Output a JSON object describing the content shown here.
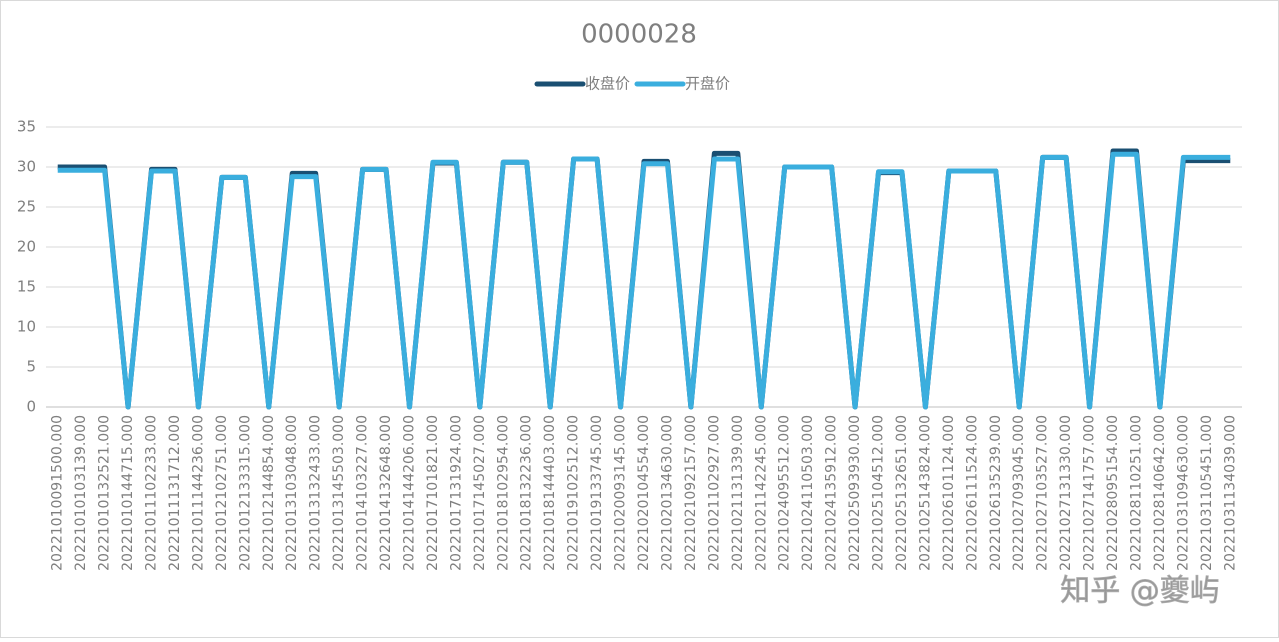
{
  "chart_data": {
    "type": "line",
    "title": "0000028",
    "categories": [
      "20221010091500.000",
      "20221010103139.000",
      "20221010132521.000",
      "20221010144715.000",
      "20221011102233.000",
      "20221011131712.000",
      "20221011144236.000",
      "20221012102751.000",
      "20221012133315.000",
      "20221012144854.000",
      "20221013103048.000",
      "20221013132433.000",
      "20221013145503.000",
      "20221014103227.000",
      "20221014132648.000",
      "20221014144206.000",
      "20221017101821.000",
      "20221017131924.000",
      "20221017145027.000",
      "20221018102954.000",
      "20221018132236.000",
      "20221018144403.000",
      "20221019102512.000",
      "20221019133745.000",
      "20221020093145.000",
      "20221020104554.000",
      "20221020134630.000",
      "20221021092157.000",
      "20221021102927.000",
      "20221021131339.000",
      "20221021142245.000",
      "20221024095512.000",
      "20221024110503.000",
      "20221024135912.000",
      "20221025093930.000",
      "20221025104512.000",
      "20221025132651.000",
      "20221025143824.000",
      "20221026101124.000",
      "20221026111524.000",
      "20221026135239.000",
      "20221027093045.000",
      "20221027103527.000",
      "20221027131330.000",
      "20221027141757.000",
      "20221028095154.000",
      "20221028110251.000",
      "20221028140642.000",
      "20221031094630.000",
      "20221031105451.000",
      "20221031134039.000"
    ],
    "series": [
      {
        "name": "收盘价",
        "color": "#1a4f72",
        "values": [
          30.0,
          30.0,
          30.0,
          0,
          29.7,
          29.7,
          0,
          28.7,
          28.7,
          0,
          29.2,
          29.2,
          0,
          29.7,
          29.7,
          0,
          30.5,
          30.5,
          0,
          30.6,
          30.6,
          0,
          31.0,
          31.0,
          0,
          30.7,
          30.7,
          0,
          31.7,
          31.7,
          0,
          30.0,
          30.0,
          30.0,
          0,
          29.3,
          29.3,
          0,
          29.5,
          29.5,
          29.5,
          0,
          31.2,
          31.2,
          0,
          32.0,
          32.0,
          0,
          30.8,
          30.8,
          30.8
        ]
      },
      {
        "name": "开盘价",
        "color": "#3aaede",
        "values": [
          29.6,
          29.6,
          29.6,
          0,
          29.5,
          29.5,
          0,
          28.7,
          28.7,
          0,
          28.8,
          28.8,
          0,
          29.7,
          29.7,
          0,
          30.6,
          30.6,
          0,
          30.6,
          30.6,
          0,
          31.0,
          31.0,
          0,
          30.4,
          30.4,
          0,
          31.0,
          31.0,
          0,
          30.0,
          30.0,
          30.0,
          0,
          29.4,
          29.4,
          0,
          29.5,
          29.5,
          29.5,
          0,
          31.2,
          31.2,
          0,
          31.6,
          31.6,
          0,
          31.2,
          31.2,
          31.2
        ]
      }
    ],
    "ylim": [
      0,
      35
    ],
    "yticks": [
      0,
      5,
      10,
      15,
      20,
      25,
      30,
      35
    ],
    "grid": true,
    "legend": "top",
    "watermark": "知乎 @夔屿"
  }
}
